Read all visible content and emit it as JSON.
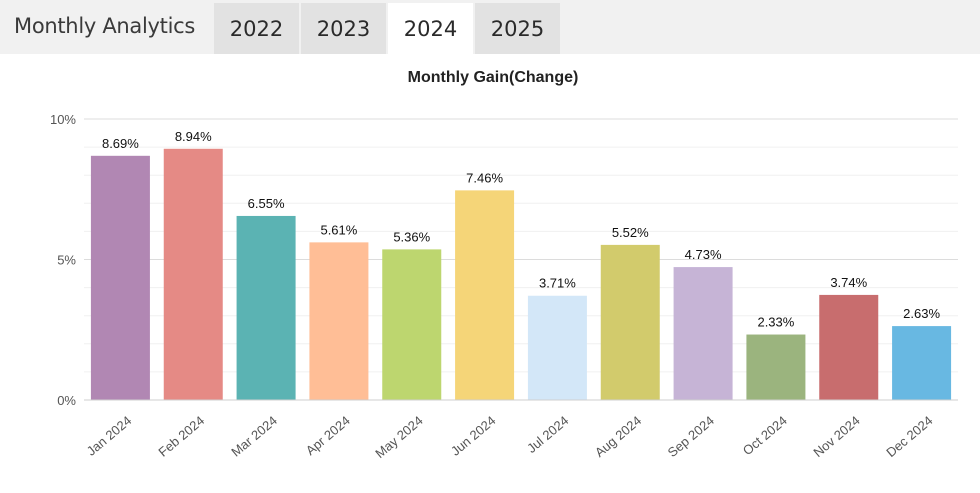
{
  "header": {
    "title": "Monthly Analytics",
    "tabs": [
      {
        "label": "2022",
        "active": false
      },
      {
        "label": "2023",
        "active": false
      },
      {
        "label": "2024",
        "active": true
      },
      {
        "label": "2025",
        "active": false
      }
    ]
  },
  "chart_data": {
    "type": "bar",
    "title": "Monthly Gain(Change)",
    "categories": [
      "Jan 2024",
      "Feb 2024",
      "Mar 2024",
      "Apr 2024",
      "May 2024",
      "Jun 2024",
      "Jul 2024",
      "Aug 2024",
      "Sep 2024",
      "Oct 2024",
      "Nov 2024",
      "Dec 2024"
    ],
    "values": [
      8.69,
      8.94,
      6.55,
      5.61,
      5.36,
      7.46,
      3.71,
      5.52,
      4.73,
      2.33,
      3.74,
      2.63
    ],
    "data_labels": [
      "8.69%",
      "8.94%",
      "6.55%",
      "5.61%",
      "5.36%",
      "7.46%",
      "3.71%",
      "5.52%",
      "4.73%",
      "2.33%",
      "3.74%",
      "2.63%"
    ],
    "colors": [
      "#b187b3",
      "#e58a85",
      "#5bb3b3",
      "#ffbe96",
      "#bdd66f",
      "#f5d578",
      "#d3e7f8",
      "#d2cb6c",
      "#c6b4d6",
      "#9bb47e",
      "#c86d6e",
      "#68b8e2"
    ],
    "ylim": [
      0,
      10
    ],
    "yticks": [
      0,
      5,
      10
    ],
    "ytick_labels": [
      "0%",
      "5%",
      "10%"
    ],
    "grid": true,
    "xlabel": "",
    "ylabel": ""
  }
}
